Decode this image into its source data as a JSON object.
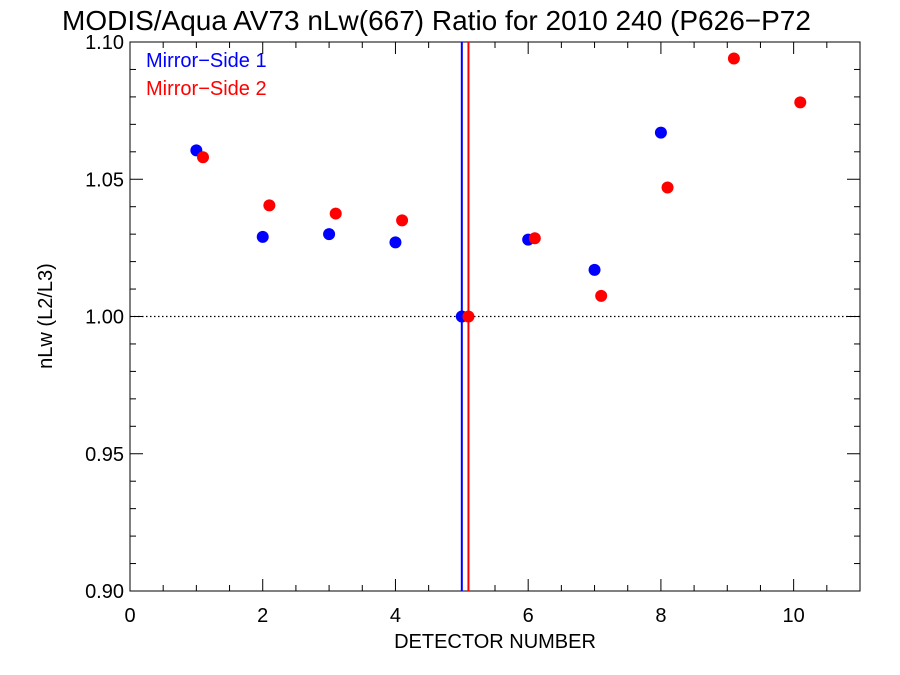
{
  "chart_data": {
    "type": "scatter",
    "title": "MODIS/Aqua AV73 nLw(667) Ratio for 2010 240 (P626−P72",
    "xlabel": "DETECTOR NUMBER",
    "ylabel": "nLw (L2/L3)",
    "xlim": [
      0,
      11
    ],
    "ylim": [
      0.9,
      1.1
    ],
    "xticks": [
      0,
      2,
      4,
      6,
      8,
      10
    ],
    "xtick_labels": [
      "0",
      "2",
      "4",
      "6",
      "8",
      "10"
    ],
    "yticks": [
      0.9,
      0.95,
      1.0,
      1.05,
      1.1
    ],
    "ytick_labels": [
      "0.90",
      "0.95",
      "1.00",
      "1.05",
      "1.10"
    ],
    "reference_line": {
      "y": 1.0,
      "style": "dotted"
    },
    "legend": {
      "placement": "top-left"
    },
    "grid": false,
    "series": [
      {
        "name": "Mirror−Side 1",
        "color": "#0000ff",
        "x": [
          1,
          2,
          3,
          4,
          5,
          6,
          7,
          8
        ],
        "y": [
          1.0605,
          1.029,
          1.03,
          1.027,
          1.0,
          1.028,
          1.017,
          1.067
        ],
        "marker_line_x": 5.0
      },
      {
        "name": "Mirror−Side 2",
        "color": "#ff0000",
        "x": [
          1.1,
          2.1,
          3.1,
          4.1,
          5.1,
          6.1,
          7.1,
          8.1,
          9.1,
          10.1
        ],
        "y": [
          1.058,
          1.0405,
          1.0375,
          1.035,
          1.0,
          1.0285,
          1.0075,
          1.047,
          1.094,
          1.078
        ],
        "marker_line_x": 5.1
      }
    ]
  }
}
